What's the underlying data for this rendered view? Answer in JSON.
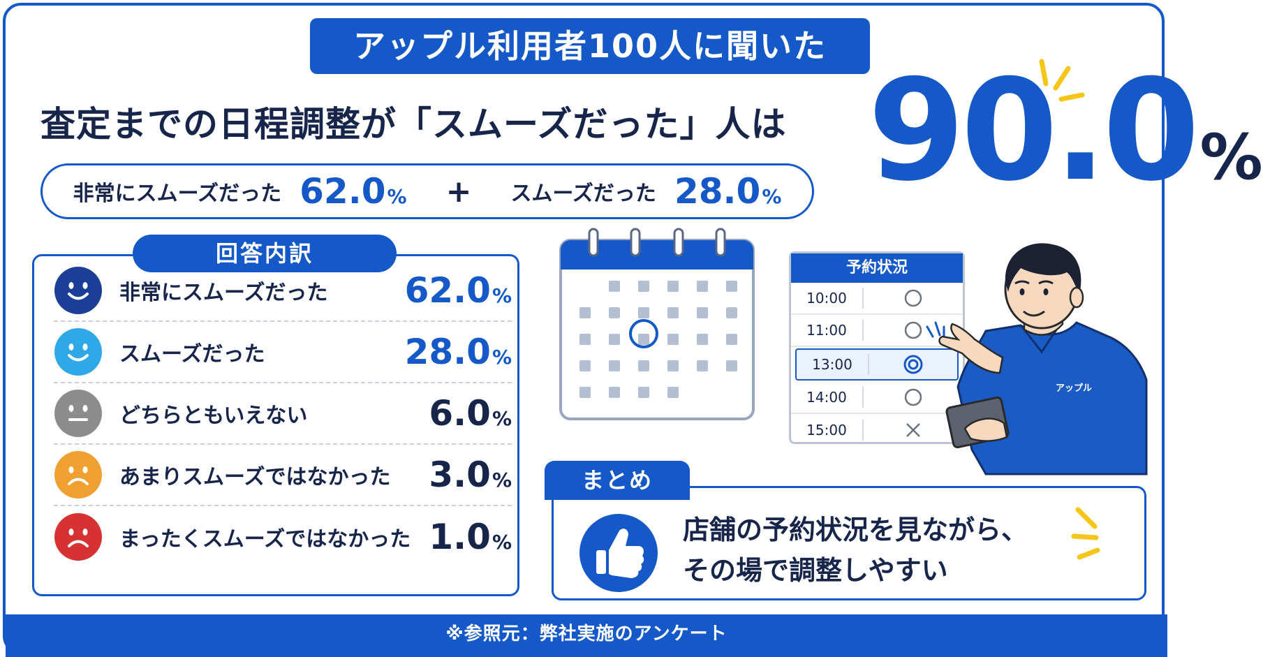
{
  "header": {
    "label": "アップル利用者100人に聞いた",
    "headline": "査定までの日程調整が「スムーズだった」人は",
    "total_value": "90.0",
    "total_unit": "%"
  },
  "breakdown": {
    "a_label": "非常にスムーズだった",
    "a_value": "62.0",
    "a_unit": "%",
    "plus": "+",
    "b_label": "スムーズだった",
    "b_value": "28.0",
    "b_unit": "%"
  },
  "chart_data": {
    "type": "table",
    "title": "回答内訳",
    "unit": "%",
    "rows": [
      {
        "label": "非常にスムーズだった",
        "value": 62.0,
        "display": "62.0",
        "color": "#1b3f99",
        "face": "smile"
      },
      {
        "label": "スムーズだった",
        "value": 28.0,
        "display": "28.0",
        "color": "#2ea8e6",
        "face": "smile"
      },
      {
        "label": "どちらともいえない",
        "value": 6.0,
        "display": "6.0",
        "color": "#8c8c8c",
        "face": "neutral"
      },
      {
        "label": "あまりスムーズではなかった",
        "value": 3.0,
        "display": "3.0",
        "color": "#f0a030",
        "face": "frown"
      },
      {
        "label": "まったくスムーズではなかった",
        "value": 1.0,
        "display": "1.0",
        "color": "#d63232",
        "face": "frown"
      }
    ]
  },
  "illustration": {
    "schedule_title": "予約状況",
    "slots": [
      {
        "time": "10:00",
        "mark": "circle"
      },
      {
        "time": "11:00",
        "mark": "circle"
      },
      {
        "time": "13:00",
        "mark": "double-circle",
        "selected": true
      },
      {
        "time": "14:00",
        "mark": "circle"
      },
      {
        "time": "15:00",
        "mark": "cross"
      }
    ],
    "shirt_text": "アップル"
  },
  "summary": {
    "tab": "まとめ",
    "line1": "店舗の予約状況を見ながら、",
    "line2": "その場で調整しやすい"
  },
  "footer": {
    "source": "※参照元：弊社実施のアンケート"
  },
  "colors": {
    "primary": "#1459c7",
    "dark_text": "#17254a",
    "accent_yellow": "#f5c518"
  }
}
